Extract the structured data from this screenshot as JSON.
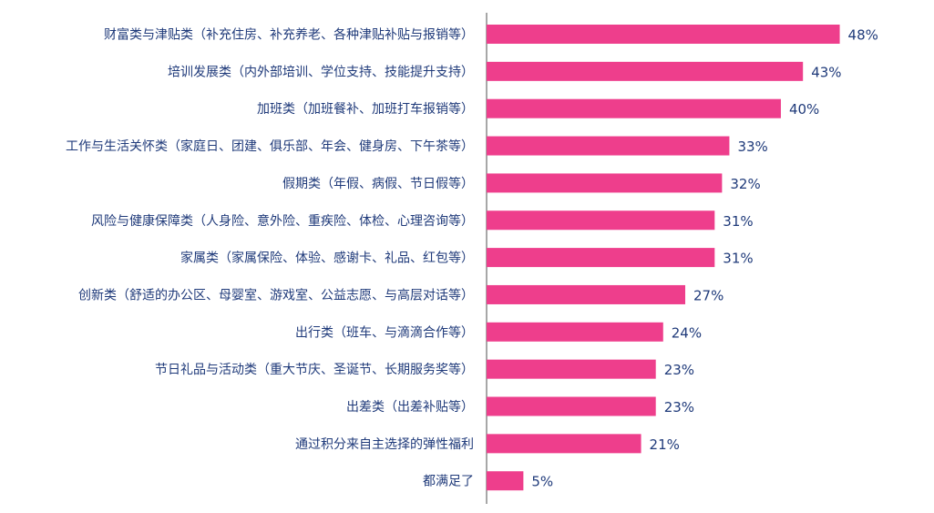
{
  "chart_data": {
    "type": "bar",
    "orientation": "horizontal",
    "title": "",
    "xlabel": "",
    "ylabel": "",
    "categories": [
      "财富类与津贴类（补充住房、补充养老、各种津贴补贴与报销等）",
      "培训发展类（内外部培训、学位支持、技能提升支持）",
      "加班类（加班餐补、加班打车报销等）",
      "工作与生活关怀类（家庭日、团建、俱乐部、年会、健身房、下午茶等）",
      "假期类（年假、病假、节日假等）",
      "风险与健康保障类（人身险、意外险、重疾险、体检、心理咨询等）",
      "家属类（家属保险、体验、感谢卡、礼品、红包等）",
      "创新类（舒适的办公区、母婴室、游戏室、公益志愿、与高层对话等）",
      "出行类（班车、与滴滴合作等）",
      "节日礼品与活动类（重大节庆、圣诞节、长期服务奖等）",
      "出差类（出差补贴等）",
      "通过积分来自主选择的弹性福利",
      "都满足了"
    ],
    "values": [
      48,
      43,
      40,
      33,
      32,
      31,
      31,
      27,
      24,
      23,
      23,
      21,
      5
    ],
    "value_labels": [
      "48%",
      "43%",
      "40%",
      "33%",
      "32%",
      "31%",
      "31%",
      "27%",
      "24%",
      "23%",
      "23%",
      "21%",
      "5%"
    ],
    "xlim": [
      0,
      54
    ],
    "unit": "%",
    "grid": false,
    "legend": "none",
    "colors": {
      "bar": "#ee3e8c",
      "text": "#1f3a7a",
      "axis": "#8a8a8a"
    }
  }
}
